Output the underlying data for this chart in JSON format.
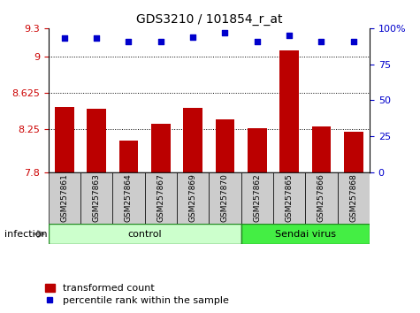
{
  "title": "GDS3210 / 101854_r_at",
  "samples": [
    "GSM257861",
    "GSM257863",
    "GSM257864",
    "GSM257867",
    "GSM257869",
    "GSM257870",
    "GSM257862",
    "GSM257865",
    "GSM257866",
    "GSM257868"
  ],
  "bar_values": [
    8.48,
    8.46,
    8.13,
    8.3,
    8.47,
    8.35,
    8.26,
    9.07,
    8.28,
    8.22
  ],
  "percentile_values": [
    93,
    93,
    91,
    91,
    94,
    97,
    91,
    95,
    91,
    91
  ],
  "ylim_left": [
    7.8,
    9.3
  ],
  "ylim_right": [
    0,
    100
  ],
  "yticks_left": [
    7.8,
    8.25,
    8.625,
    9.0,
    9.3
  ],
  "ytick_labels_left": [
    "7.8",
    "8.25",
    "8.625",
    "9",
    "9.3"
  ],
  "yticks_right": [
    0,
    25,
    50,
    75,
    100
  ],
  "ytick_labels_right": [
    "0",
    "25",
    "50",
    "75",
    "100%"
  ],
  "hlines": [
    8.25,
    8.625,
    9.0
  ],
  "bar_color": "#bb0000",
  "dot_color": "#0000cc",
  "n_control": 6,
  "n_virus": 4,
  "control_label": "control",
  "virus_label": "Sendai virus",
  "factor_label": "infection",
  "legend_bar_label": "transformed count",
  "legend_dot_label": "percentile rank within the sample",
  "control_bg": "#ccffcc",
  "virus_bg": "#44ee44",
  "label_cell_bg": "#cccccc",
  "xlabel_color": "#cc0000",
  "ylabel_right_color": "#0000cc",
  "title_fontsize": 10,
  "tick_fontsize": 8,
  "label_fontsize": 6.5,
  "factor_fontsize": 8,
  "legend_fontsize": 8
}
